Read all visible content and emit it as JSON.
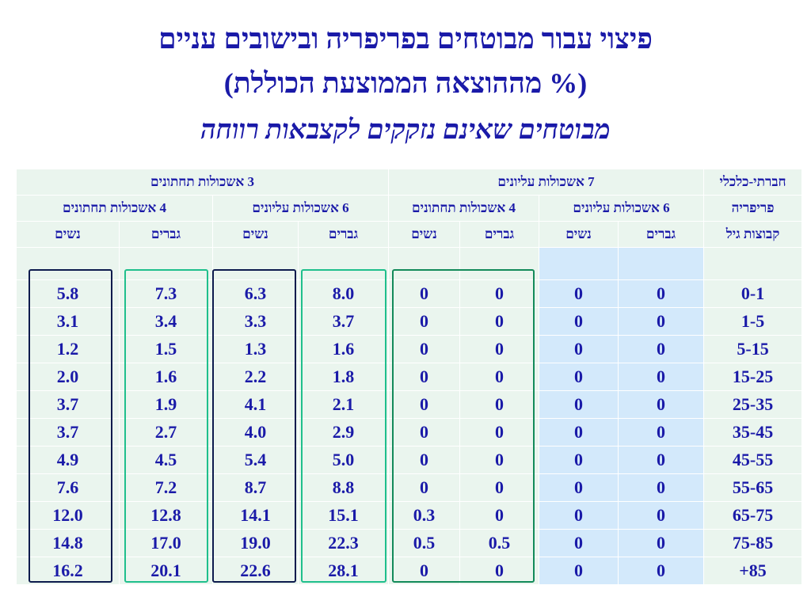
{
  "title": {
    "line1": "פיצוי עבור מבוטחים בפריפריה ובישובים עניים",
    "line2": "(% מההוצאה הממוצעת הכוללת)",
    "line3": "מבוטחים שאינם נזקקים לקצבאות רווחה"
  },
  "table": {
    "header_top": {
      "low3": "3 אשכולות תחתונים",
      "top7": "7 אשכולות עליונים",
      "socioeconomic": "חברתי-כלכלי"
    },
    "header_mid": {
      "low4": "4 אשכולות תחתונים",
      "top6a": "6 אשכולות עליונים",
      "low4b": "4 אשכולות תחתונים",
      "top6b": "6 אשכולות עליונים",
      "periphery": "פריפריה"
    },
    "header_gender": {
      "women": "נשים",
      "men": "גברים",
      "age_groups": "קבוצות גיל"
    },
    "rows": [
      {
        "age": "0-1",
        "v": [
          "5.8",
          "7.3",
          "6.3",
          "8.0",
          "0",
          "0",
          "0",
          "0"
        ]
      },
      {
        "age": "1-5",
        "v": [
          "3.1",
          "3.4",
          "3.3",
          "3.7",
          "0",
          "0",
          "0",
          "0"
        ]
      },
      {
        "age": "5-15",
        "v": [
          "1.2",
          "1.5",
          "1.3",
          "1.6",
          "0",
          "0",
          "0",
          "0"
        ]
      },
      {
        "age": "15-25",
        "v": [
          "2.0",
          "1.6",
          "2.2",
          "1.8",
          "0",
          "0",
          "0",
          "0"
        ]
      },
      {
        "age": "25-35",
        "v": [
          "3.7",
          "1.9",
          "4.1",
          "2.1",
          "0",
          "0",
          "0",
          "0"
        ]
      },
      {
        "age": "35-45",
        "v": [
          "3.7",
          "2.7",
          "4.0",
          "2.9",
          "0",
          "0",
          "0",
          "0"
        ]
      },
      {
        "age": "45-55",
        "v": [
          "4.9",
          "4.5",
          "5.4",
          "5.0",
          "0",
          "0",
          "0",
          "0"
        ]
      },
      {
        "age": "55-65",
        "v": [
          "7.6",
          "7.2",
          "8.7",
          "8.8",
          "0",
          "0",
          "0",
          "0"
        ]
      },
      {
        "age": "65-75",
        "v": [
          "12.0",
          "12.8",
          "14.1",
          "15.1",
          "0.3",
          "0",
          "0",
          "0"
        ]
      },
      {
        "age": "75-85",
        "v": [
          "14.8",
          "17.0",
          "19.0",
          "22.3",
          "0.5",
          "0.5",
          "0",
          "0"
        ]
      },
      {
        "age": "+85",
        "v": [
          "16.2",
          "20.1",
          "22.6",
          "28.1",
          "0",
          "0",
          "0",
          "0"
        ]
      }
    ]
  }
}
